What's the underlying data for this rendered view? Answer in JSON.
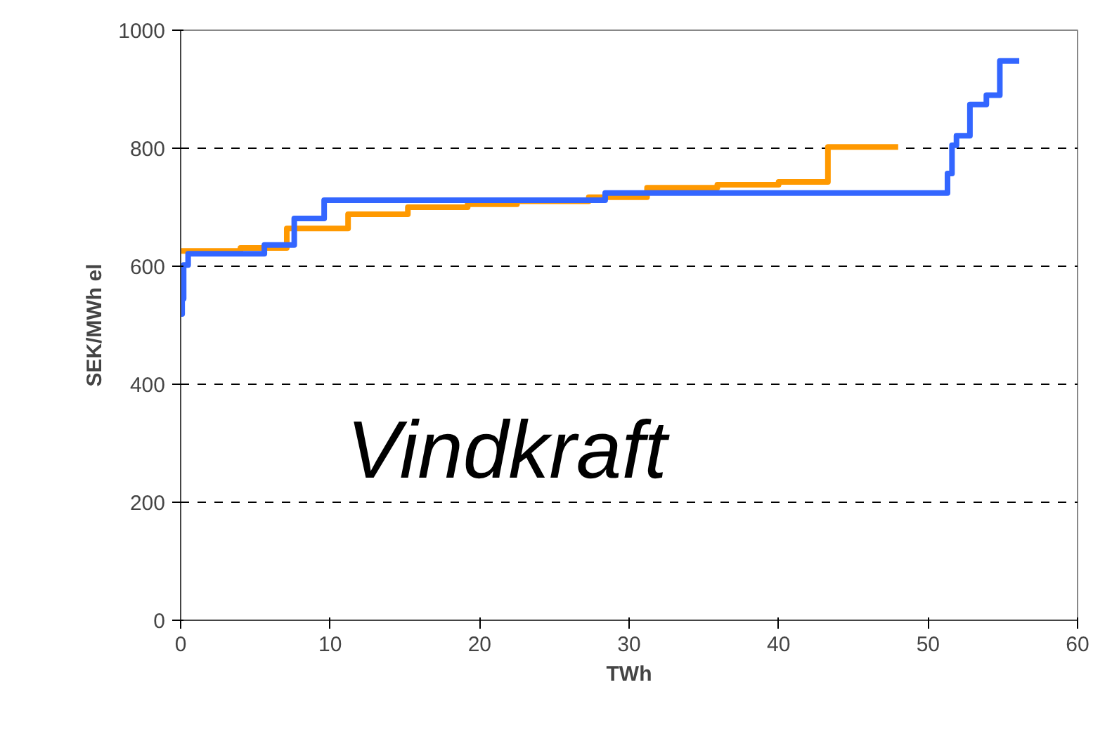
{
  "chart_data": {
    "type": "step",
    "xlabel": "TWh",
    "ylabel": "SEK/MWh el",
    "xlim": [
      0,
      60
    ],
    "ylim": [
      0,
      1000
    ],
    "xticks": [
      0,
      10,
      20,
      30,
      40,
      50,
      60
    ],
    "yticks": [
      0,
      200,
      400,
      600,
      800,
      1000
    ],
    "grid": "y",
    "annotations": [
      "Vindkraft"
    ],
    "series": [
      {
        "color": "#ff9900",
        "x": [
          0,
          4,
          7.1,
          11.2,
          15.2,
          19.2,
          22.5,
          27.3,
          31.2,
          35.9,
          40,
          43.3,
          48
        ],
        "values": [
          626,
          631,
          664,
          688,
          700,
          705,
          710,
          717,
          733,
          738,
          743,
          802,
          802
        ]
      },
      {
        "color": "#3366ff",
        "x": [
          0,
          0.1,
          0.2,
          0.5,
          5.6,
          7.6,
          9.6,
          28.4,
          51.3,
          51.6,
          51.9,
          52.8,
          53.9,
          54.8,
          56.1
        ],
        "values": [
          519,
          545,
          602,
          621,
          636,
          681,
          712,
          724,
          757,
          805,
          821,
          874,
          890,
          948,
          948
        ]
      }
    ]
  }
}
